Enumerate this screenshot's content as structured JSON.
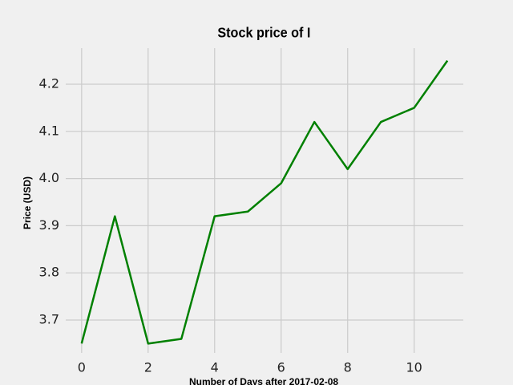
{
  "chart_data": {
    "type": "line",
    "title": "Stock price of I",
    "x_label": "Number of Days after 2017-02-08",
    "y_label": "Price (USD)",
    "x": [
      0,
      1,
      2,
      3,
      4,
      5,
      6,
      7,
      8,
      9,
      10,
      11
    ],
    "series": [
      {
        "color": "#008000",
        "values": [
          3.65,
          3.92,
          3.65,
          3.66,
          3.92,
          3.93,
          3.99,
          4.12,
          4.02,
          4.12,
          4.15,
          4.25
        ]
      }
    ],
    "xlim": [
      -0.55,
      11.55
    ],
    "xticks": [
      0,
      2,
      4,
      6,
      8,
      10
    ],
    "ylim": [
      3.62,
      4.28
    ],
    "yticks": [
      3.7,
      3.8,
      3.9,
      {
        "value": 4,
        "label": "4.0"
      },
      4.1,
      4.2
    ],
    "grid": true
  }
}
